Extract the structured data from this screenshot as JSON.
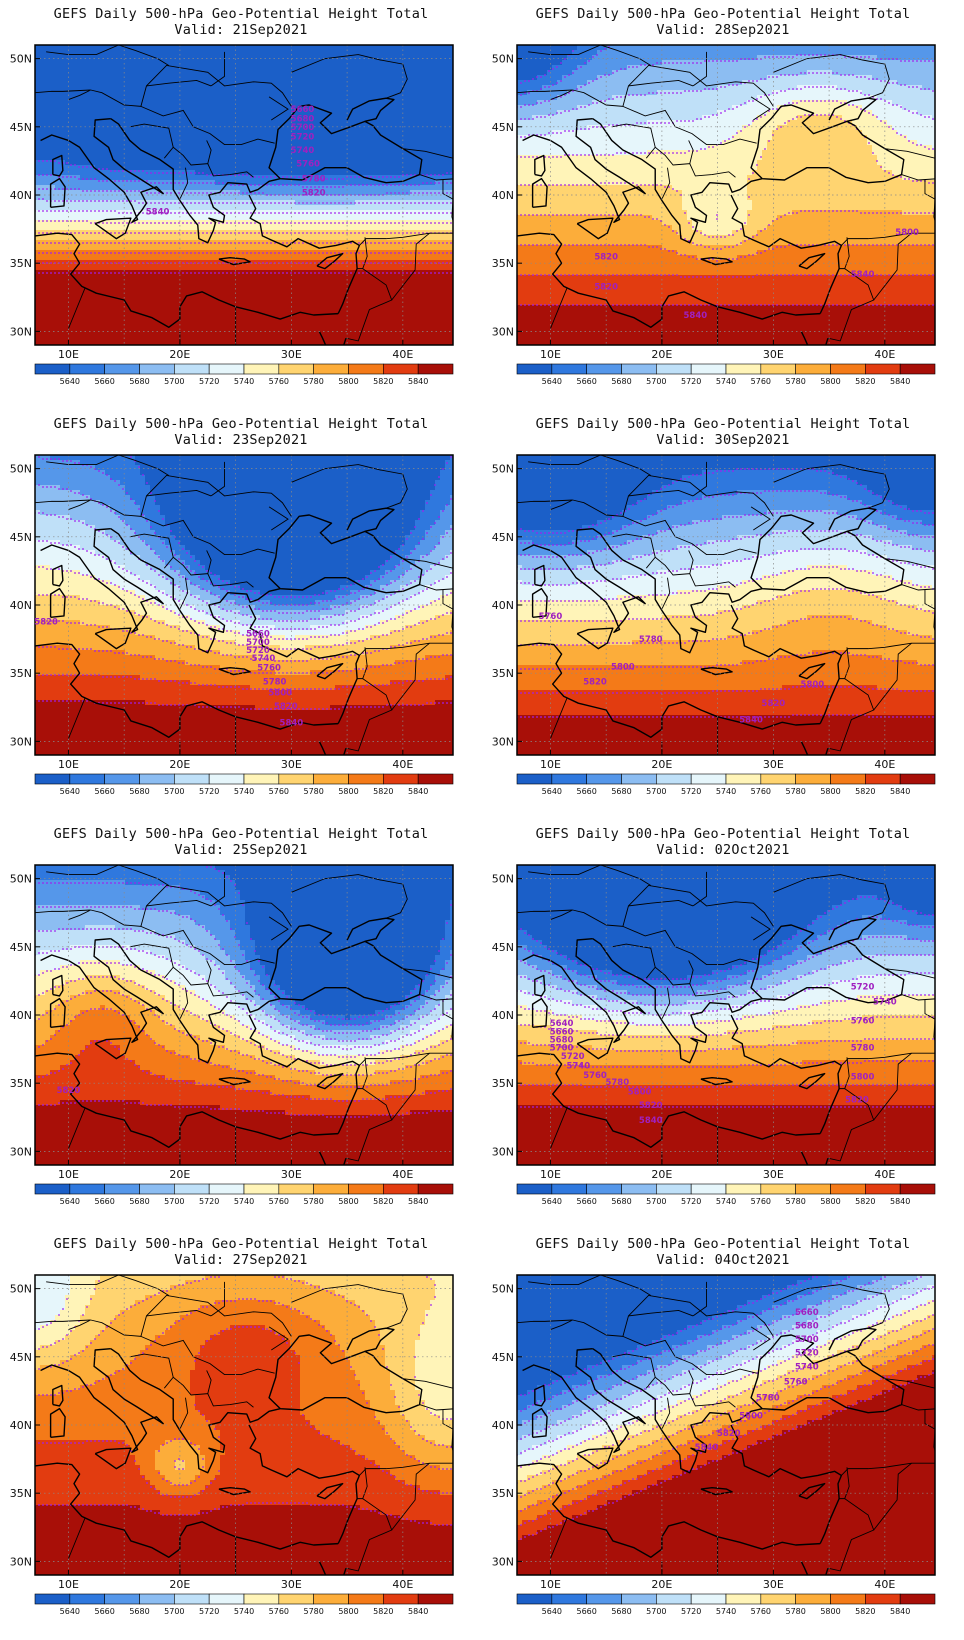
{
  "figure_title": "GEFS Daily 500-hPa Geo-Potential Height Total",
  "valid_prefix": "Valid:",
  "colorbar": {
    "labels": [
      "5640",
      "5660",
      "5680",
      "5700",
      "5720",
      "5740",
      "5760",
      "5780",
      "5800",
      "5820",
      "5840"
    ],
    "colors": [
      "#1b5fc8",
      "#2f78de",
      "#5597ea",
      "#8cbdf2",
      "#bfe0f8",
      "#e6f6fb",
      "#fff4b8",
      "#ffd470",
      "#fcad3a",
      "#f47a18",
      "#e23c10",
      "#a80f08"
    ]
  },
  "contour_color": "#a020f0",
  "lat_labels": [
    "50N",
    "45N",
    "40N",
    "35N",
    "30N"
  ],
  "lon_labels": [
    "10E",
    "20E",
    "30E",
    "40E"
  ],
  "panels": [
    {
      "date": "21Sep2021",
      "contour_labels": [
        "5660",
        "5680",
        "5700",
        "5720",
        "5740",
        "5760",
        "5780",
        "5820",
        "5840"
      ]
    },
    {
      "date": "28Sep2021",
      "contour_labels": [
        "5800",
        "5820",
        "5840",
        "5820",
        "5840"
      ]
    },
    {
      "date": "23Sep2021",
      "contour_labels": [
        "5820",
        "5660",
        "5700",
        "5720",
        "5740",
        "5760",
        "5780",
        "5800",
        "5820",
        "5840"
      ]
    },
    {
      "date": "30Sep2021",
      "contour_labels": [
        "5760",
        "5780",
        "5800",
        "5820",
        "5800",
        "5820",
        "5840"
      ]
    },
    {
      "date": "25Sep2021",
      "contour_labels": [
        "5820"
      ]
    },
    {
      "date": "02Oct2021",
      "contour_labels": [
        "5640",
        "5660",
        "5680",
        "5700",
        "5720",
        "5740",
        "5760",
        "5780",
        "5800",
        "5820",
        "5840",
        "5720",
        "5740",
        "5760",
        "5780",
        "5800",
        "5820"
      ]
    },
    {
      "date": "27Sep2021",
      "contour_labels": []
    },
    {
      "date": "04Oct2021",
      "contour_labels": [
        "5660",
        "5680",
        "5700",
        "5720",
        "5740",
        "5760",
        "5780",
        "5800",
        "5820",
        "5840"
      ]
    }
  ]
}
